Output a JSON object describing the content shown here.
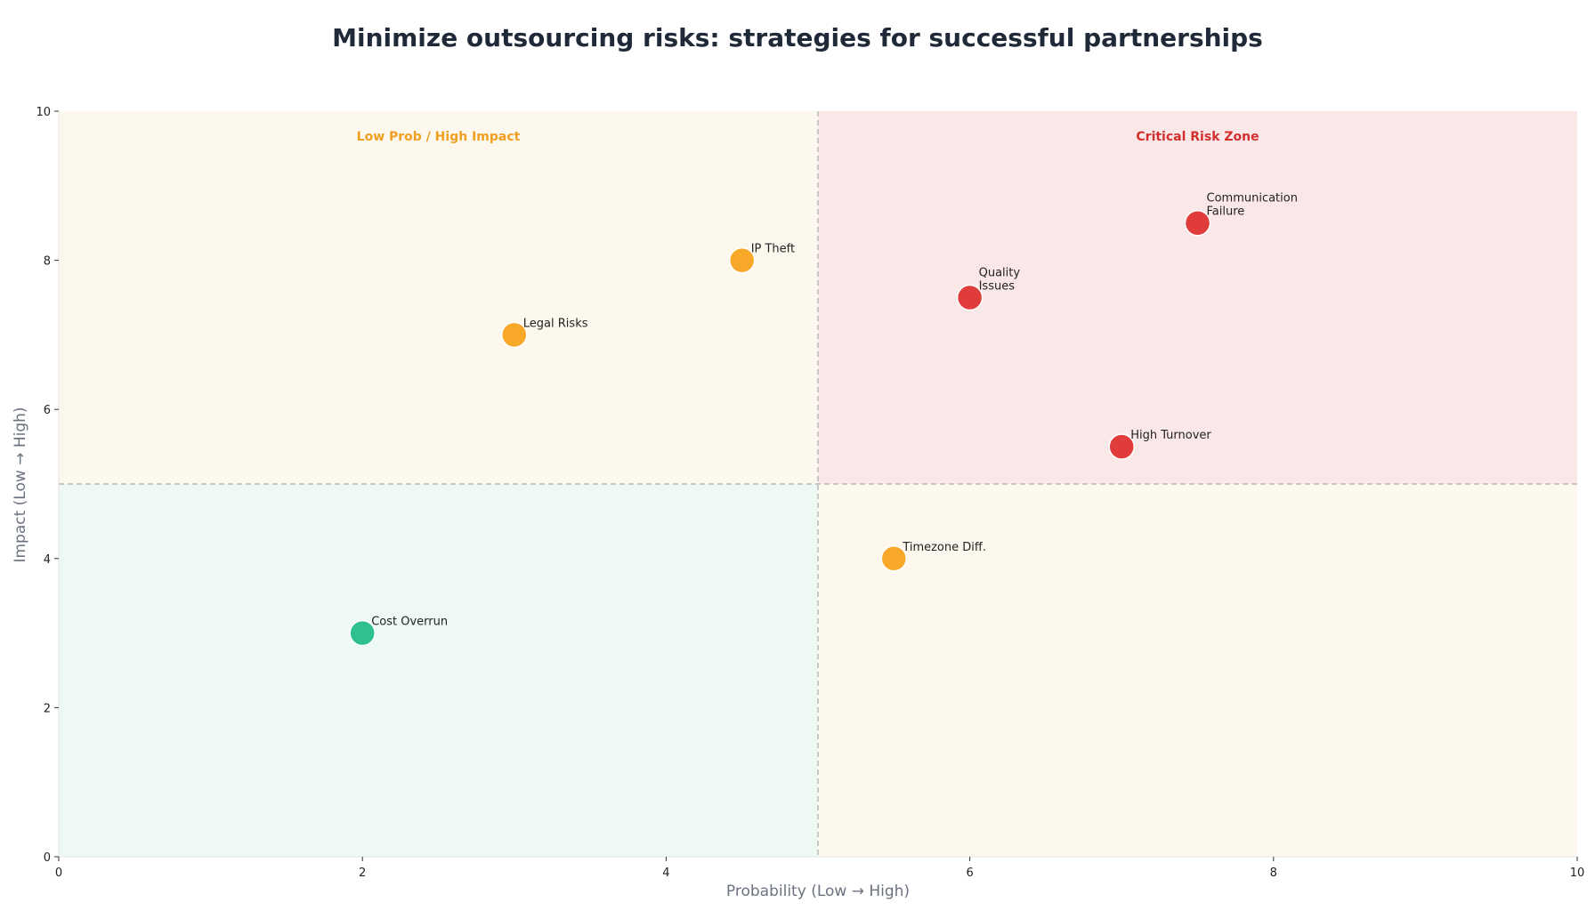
{
  "chart_data": {
    "type": "scatter",
    "title": "Minimize outsourcing risks: strategies for successful partnerships",
    "xlabel": "Probability (Low → High)",
    "ylabel": "Impact (Low → High)",
    "xlim": [
      0,
      10
    ],
    "ylim": [
      0,
      10
    ],
    "xticks": [
      "0",
      "2",
      "4",
      "6",
      "8",
      "10"
    ],
    "yticks": [
      "0",
      "2",
      "4",
      "6",
      "8",
      "10"
    ],
    "grid": false,
    "thresholds": {
      "x": 5,
      "y": 5
    },
    "quadrants": [
      {
        "id": "low-low",
        "x_range": [
          0,
          5
        ],
        "y_range": [
          0,
          5
        ],
        "color": "#eef9f4",
        "label": ""
      },
      {
        "id": "low-high",
        "x_range": [
          0,
          5
        ],
        "y_range": [
          5,
          10
        ],
        "color": "#fdf8ee",
        "label": "Low Prob / High Impact",
        "label_color": "#f0a020"
      },
      {
        "id": "high-low",
        "x_range": [
          5,
          10
        ],
        "y_range": [
          0,
          5
        ],
        "color": "#fdf8ee",
        "label": ""
      },
      {
        "id": "high-high",
        "x_range": [
          5,
          10
        ],
        "y_range": [
          5,
          10
        ],
        "color": "#fae8e8",
        "label": "Critical Risk Zone",
        "label_color": "#d32f2f"
      }
    ],
    "points": [
      {
        "label": [
          "Communication",
          "Failure"
        ],
        "x": 7.5,
        "y": 8.5,
        "color": "#e03c3c"
      },
      {
        "label": [
          "Quality",
          "Issues"
        ],
        "x": 6.0,
        "y": 7.5,
        "color": "#e03c3c"
      },
      {
        "label": [
          "High Turnover"
        ],
        "x": 7.0,
        "y": 5.5,
        "color": "#e03c3c"
      },
      {
        "label": [
          "IP Theft"
        ],
        "x": 4.5,
        "y": 8.0,
        "color": "#f7a828"
      },
      {
        "label": [
          "Legal Risks"
        ],
        "x": 3.0,
        "y": 7.0,
        "color": "#f7a828"
      },
      {
        "label": [
          "Timezone Diff."
        ],
        "x": 5.5,
        "y": 4.0,
        "color": "#f7a828"
      },
      {
        "label": [
          "Cost Overrun"
        ],
        "x": 2.0,
        "y": 3.0,
        "color": "#2fc08e"
      }
    ]
  }
}
